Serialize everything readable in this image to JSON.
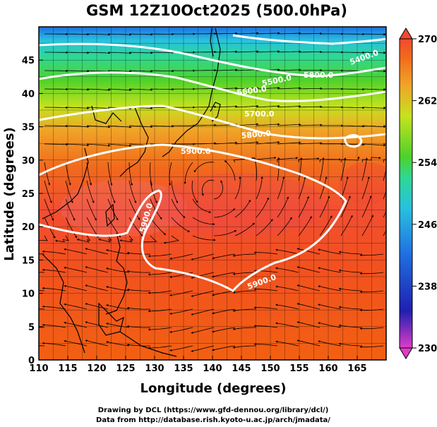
{
  "title": "GSM 12Z10Oct2025 (500.0hPa)",
  "x_axis": {
    "label": "Longitude (degrees)",
    "range": [
      110,
      170
    ],
    "ticks": [
      "110",
      "115",
      "120",
      "125",
      "130",
      "135",
      "140",
      "145",
      "150",
      "155",
      "160",
      "165"
    ]
  },
  "y_axis": {
    "label": "Latitude  (degrees)",
    "range": [
      0,
      50
    ],
    "ticks": [
      "0",
      "5",
      "10",
      "15",
      "20",
      "25",
      "30",
      "35",
      "40",
      "45"
    ]
  },
  "colorbar": {
    "labels": [
      "270",
      "262",
      "254",
      "246",
      "238",
      "230"
    ],
    "range": [
      230,
      270
    ],
    "colors": [
      "#e03cc8",
      "#1f1fb0",
      "#1f6ee0",
      "#28c0e0",
      "#2ed894",
      "#4ed22a",
      "#c6e21e",
      "#f0a428",
      "#f26a1c",
      "#f04a2e"
    ]
  },
  "contour_labels": [
    "5400.0",
    "5500.0",
    "5600.0",
    "5700.0",
    "5800.0",
    "5800.0",
    "5900.0",
    "5900.0",
    "5900.0"
  ],
  "credits": {
    "line1": "Drawing by DCL (https://www.gfd-dennou.org/library/dcl/)",
    "line2": "Data from http://database.rish.kyoto-u.ac.jp/arch/jmadata/"
  }
}
